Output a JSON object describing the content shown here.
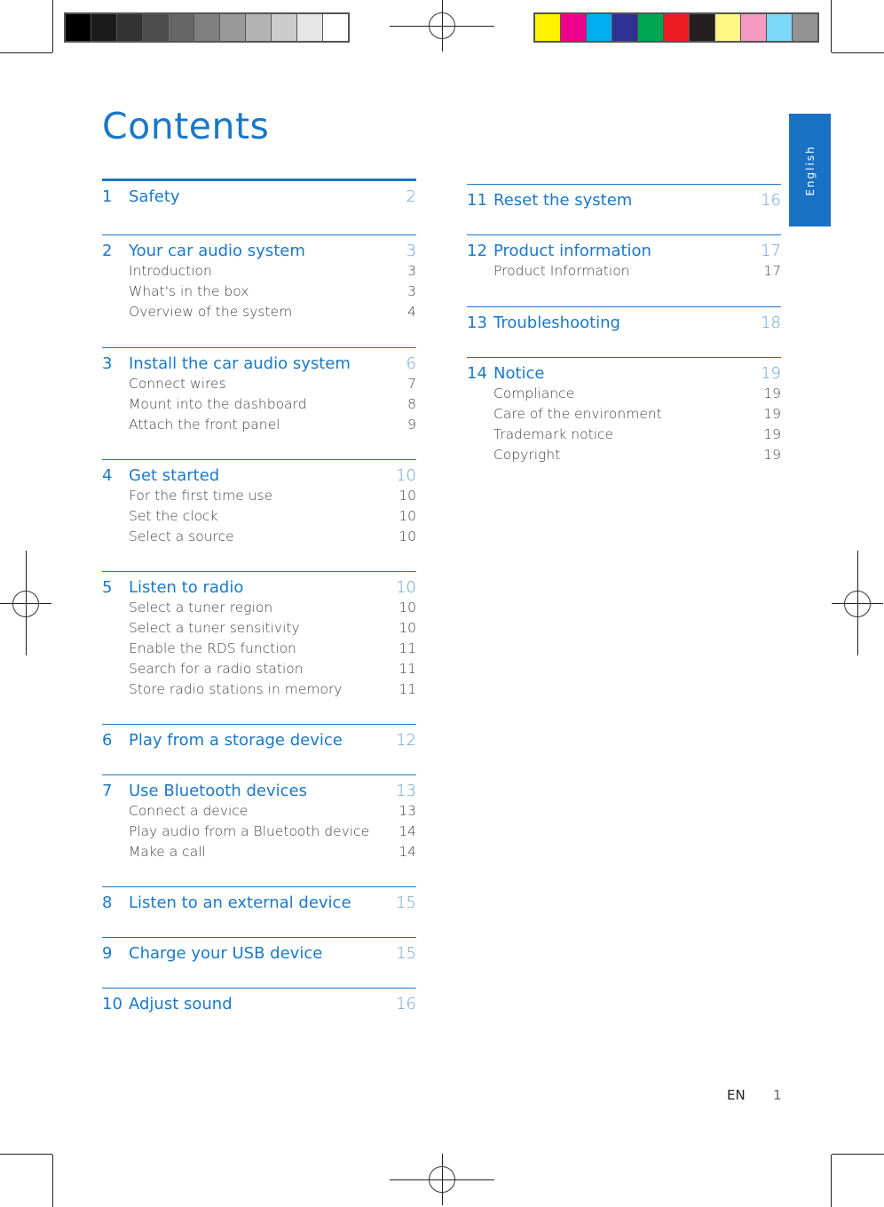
{
  "title": "Contents",
  "language_tab": "English",
  "footer": {
    "lang": "EN",
    "page": "1"
  },
  "colors": {
    "accent": "#1a78c8",
    "tab": "#1a72c4"
  },
  "grayscale_bar": [
    "#000000",
    "#1b1b1b",
    "#333333",
    "#4d4d4d",
    "#666666",
    "#808080",
    "#999999",
    "#b3b3b3",
    "#cccccc",
    "#e6e6e6",
    "#ffffff"
  ],
  "color_bar": [
    "#fff200",
    "#ec008c",
    "#00aeef",
    "#2e3192",
    "#00a651",
    "#ed1c24",
    "#231f20",
    "#fff685",
    "#f49ac1",
    "#7dd8f9",
    "#939393"
  ],
  "left_sections": [
    {
      "num": "1",
      "title": "Safety",
      "page": "2",
      "items": []
    },
    {
      "num": "2",
      "title": "Your car audio system",
      "page": "3",
      "items": [
        {
          "title": "Introduction",
          "page": "3"
        },
        {
          "title": "What's in the box",
          "page": "3"
        },
        {
          "title": "Overview of the system",
          "page": "4"
        }
      ]
    },
    {
      "num": "3",
      "title": "Install the car audio system",
      "page": "6",
      "items": [
        {
          "title": "Connect wires",
          "page": "7"
        },
        {
          "title": "Mount into the dashboard",
          "page": "8"
        },
        {
          "title": "Attach the front panel",
          "page": "9"
        }
      ]
    },
    {
      "num": "4",
      "title": "Get started",
      "page": "10",
      "items": [
        {
          "title": "For the first time use",
          "page": "10"
        },
        {
          "title": "Set the clock",
          "page": "10"
        },
        {
          "title": "Select a source",
          "page": "10"
        }
      ]
    },
    {
      "num": "5",
      "title": "Listen to radio",
      "page": "10",
      "items": [
        {
          "title": "Select a tuner region",
          "page": "10"
        },
        {
          "title": "Select a tuner sensitivity",
          "page": "10"
        },
        {
          "title": "Enable the RDS function",
          "page": "11"
        },
        {
          "title": "Search for a radio station",
          "page": "11"
        },
        {
          "title": "Store radio stations in memory",
          "page": "11"
        }
      ]
    },
    {
      "num": "6",
      "title": "Play from a storage device",
      "page": "12",
      "items": []
    },
    {
      "num": "7",
      "title": "Use Bluetooth devices",
      "page": "13",
      "items": [
        {
          "title": "Connect a device",
          "page": "13"
        },
        {
          "title": "Play audio from a Bluetooth device",
          "page": "14"
        },
        {
          "title": "Make a call",
          "page": "14"
        }
      ]
    },
    {
      "num": "8",
      "title": "Listen to an external device",
      "page": "15",
      "items": []
    },
    {
      "num": "9",
      "title": "Charge your USB device",
      "page": "15",
      "items": []
    },
    {
      "num": "10",
      "title": "Adjust sound",
      "page": "16",
      "items": []
    }
  ],
  "right_sections": [
    {
      "num": "11",
      "title": "Reset the system",
      "page": "16",
      "items": []
    },
    {
      "num": "12",
      "title": "Product information",
      "page": "17",
      "items": [
        {
          "title": "Product Information",
          "page": "17"
        }
      ]
    },
    {
      "num": "13",
      "title": "Troubleshooting",
      "page": "18",
      "items": []
    },
    {
      "num": "14",
      "title": "Notice",
      "page": "19",
      "items": [
        {
          "title": "Compliance",
          "page": "19"
        },
        {
          "title": "Care of the environment",
          "page": "19"
        },
        {
          "title": "Trademark notice",
          "page": "19"
        },
        {
          "title": "Copyright",
          "page": "19"
        }
      ]
    }
  ]
}
